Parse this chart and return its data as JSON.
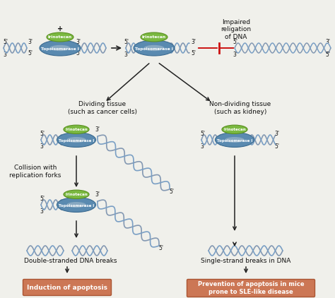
{
  "bg_color": "#f0f0eb",
  "dna_color1": "#7a9fc4",
  "dna_color2": "#4a6a94",
  "protein_blue": "#5a8ab0",
  "protein_blue_dark": "#3a6a90",
  "protein_green": "#7ab840",
  "protein_green_dark": "#5a9020",
  "arrow_color": "#222222",
  "red_line_color": "#cc1111",
  "box_fill": "#cc7755",
  "box_edge": "#aa5533",
  "text_color": "#111111",
  "label_font": 6.5,
  "small_font": 5.5,
  "box_text_color": "#ffffff",
  "texts": {
    "irinotecan": "Irinotecan",
    "topo": "Topoisomerase I",
    "plus": "+",
    "impaired": "Impaired\nreligation\nof DNA",
    "dividing": "Dividing tissue\n(such as cancer cells)",
    "nondividing": "Non-dividing tissue\n(such as kidney)",
    "collision": "Collision with\nreplication forks",
    "dsb": "Double-stranded DNA breaks",
    "ssb": "Single-strand breaks in DNA",
    "apoptosis": "Induction of apoptosis",
    "prevention": "Prevention of apoptosis in mice\nprone to SLE-like disease"
  }
}
